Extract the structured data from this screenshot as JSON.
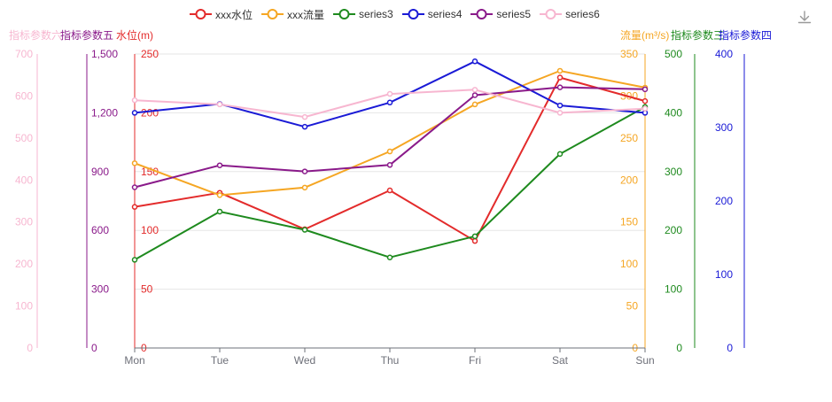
{
  "toolbox": {
    "download_icon": "download-icon"
  },
  "axis_titles": {
    "left_series6": "指标参数六",
    "left_series5": "指标参数五",
    "left_water": "水位(m)",
    "right_flow": "流量(m³/s)",
    "right_series3": "指标参数三",
    "right_series4": "指标参数四"
  },
  "chart_data": {
    "type": "line",
    "categories": [
      "Mon",
      "Tue",
      "Wed",
      "Thu",
      "Fri",
      "Sat",
      "Sun"
    ],
    "legend_position": "top-center",
    "grid": true,
    "series": [
      {
        "name": "xxx水位",
        "color": "#e32b2b",
        "axis": "water",
        "values": [
          120,
          132,
          101,
          134,
          91,
          230,
          210
        ]
      },
      {
        "name": "xxx流量",
        "color": "#f5a623",
        "axis": "flow",
        "values": [
          220,
          182,
          191,
          234,
          290,
          330,
          310
        ]
      },
      {
        "name": "series3",
        "color": "#1e8a1e",
        "axis": "s3",
        "values": [
          150,
          232,
          201,
          154,
          190,
          330,
          410
        ]
      },
      {
        "name": "series4",
        "color": "#1a1ad6",
        "axis": "s4",
        "values": [
          320,
          332,
          301,
          334,
          390,
          330,
          320
        ]
      },
      {
        "name": "series5",
        "color": "#8a1a8a",
        "axis": "s5",
        "values": [
          820,
          932,
          901,
          934,
          1290,
          1330,
          1320
        ]
      },
      {
        "name": "series6",
        "color": "#f7b6d0",
        "axis": "s6",
        "values": [
          590,
          580,
          550,
          605,
          615,
          560,
          570
        ]
      }
    ],
    "axes": {
      "water": {
        "side": "left",
        "color": "#e32b2b",
        "min": 0,
        "max": 250,
        "ticks": [
          0,
          50,
          100,
          150,
          200,
          250
        ],
        "labels": [
          "0",
          "50",
          "100",
          "150",
          "200",
          "250"
        ]
      },
      "s5": {
        "side": "left",
        "color": "#8a1a8a",
        "min": 0,
        "max": 1500,
        "ticks": [
          0,
          300,
          600,
          900,
          1200,
          1500
        ],
        "labels": [
          "0",
          "300",
          "600",
          "900",
          "1,200",
          "1,500"
        ]
      },
      "s6": {
        "side": "left",
        "color": "#f7b6d0",
        "min": 0,
        "max": 700,
        "ticks": [
          0,
          100,
          200,
          300,
          400,
          500,
          600,
          700
        ],
        "labels": [
          "0",
          "100",
          "200",
          "300",
          "400",
          "500",
          "600",
          "700"
        ]
      },
      "flow": {
        "side": "right",
        "color": "#f5a623",
        "min": 0,
        "max": 350,
        "ticks": [
          0,
          50,
          100,
          150,
          200,
          250,
          300,
          350
        ],
        "labels": [
          "0",
          "50",
          "100",
          "150",
          "200",
          "250",
          "300",
          "350"
        ]
      },
      "s3": {
        "side": "right",
        "color": "#1e8a1e",
        "min": 0,
        "max": 500,
        "ticks": [
          0,
          100,
          200,
          300,
          400,
          500
        ],
        "labels": [
          "0",
          "100",
          "200",
          "300",
          "400",
          "500"
        ]
      },
      "s4": {
        "side": "right",
        "color": "#1a1ad6",
        "min": 0,
        "max": 400,
        "ticks": [
          0,
          100,
          200,
          300,
          400
        ],
        "labels": [
          "0",
          "100",
          "200",
          "300",
          "400"
        ]
      }
    }
  }
}
